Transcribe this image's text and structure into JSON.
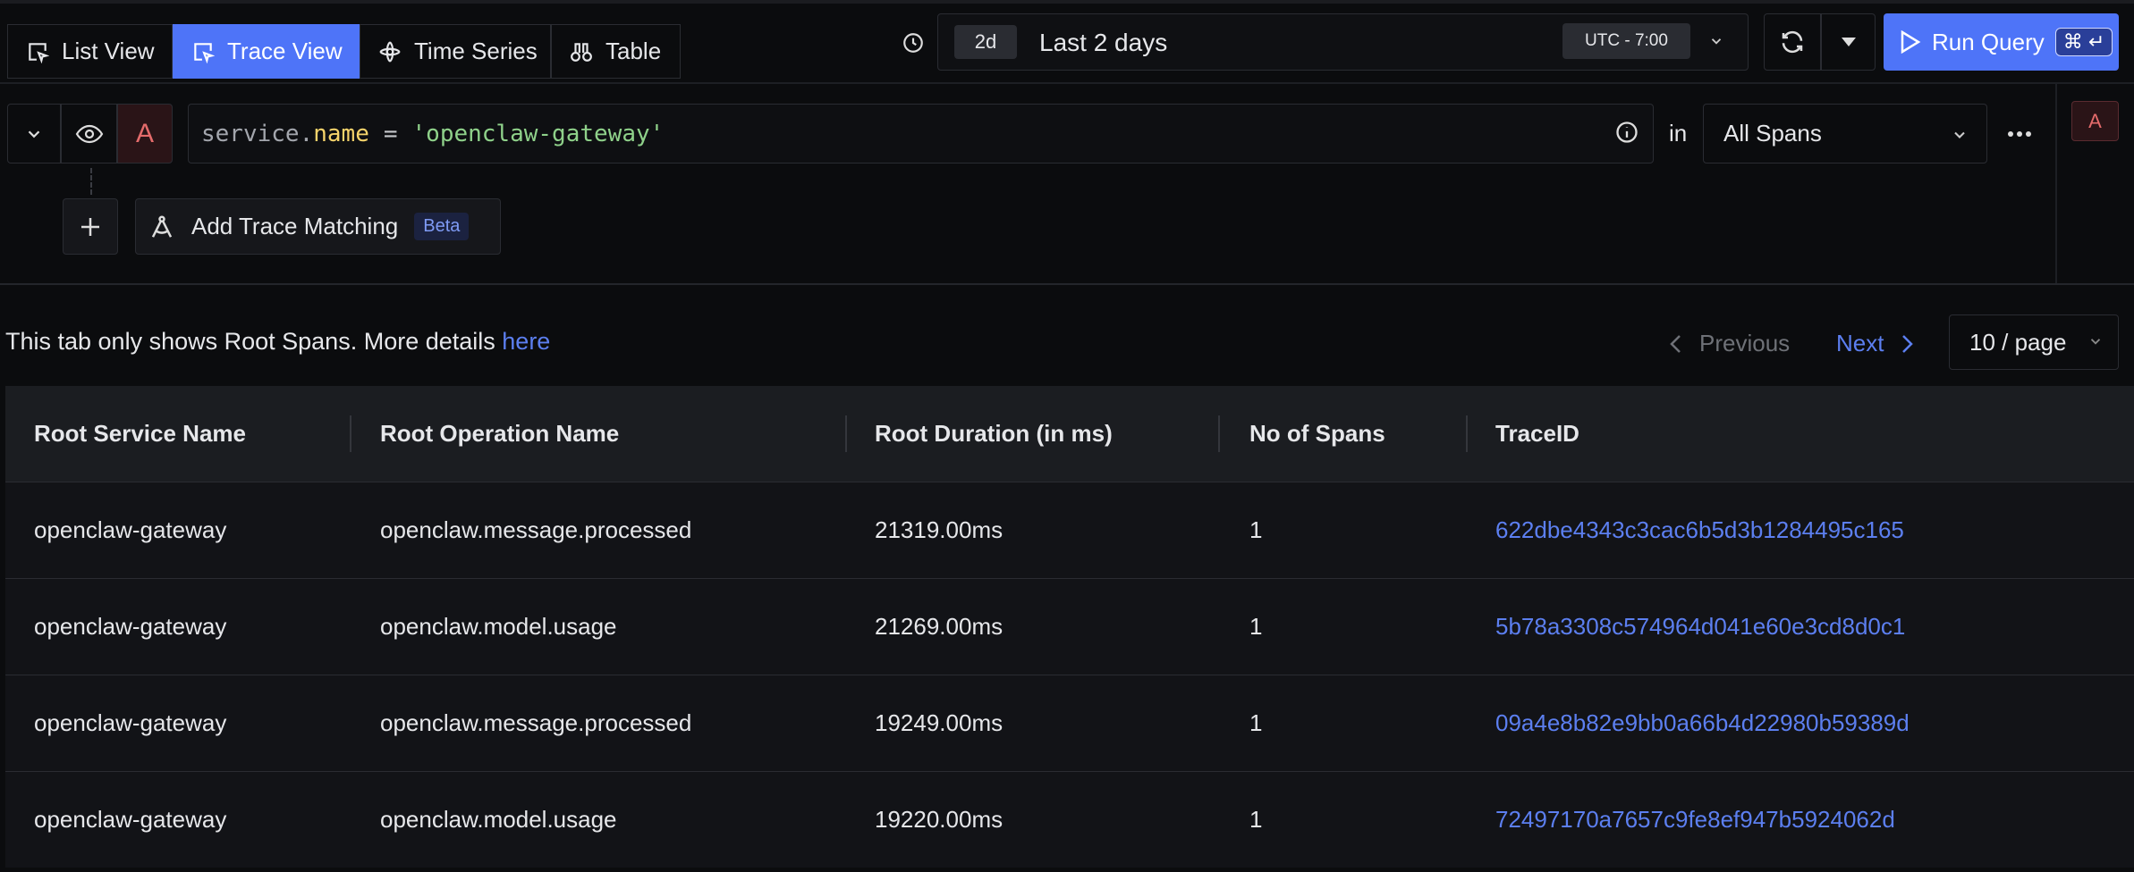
{
  "tabs": [
    "List View",
    "Trace View",
    "Time Series",
    "Table"
  ],
  "active_tab": "Trace View",
  "time_picker": {
    "shortcut": "2d",
    "label": "Last 2 days",
    "timezone": "UTC - 7:00"
  },
  "run_button": {
    "label": "Run Query",
    "shortcut": "⌘ ↵"
  },
  "query": {
    "letter": "A",
    "parts": [
      "service.",
      "name",
      "=",
      "'openclaw-gateway'"
    ],
    "in_label": "in",
    "scope": "All Spans",
    "side_letter": "A"
  },
  "add_trace_matching": {
    "label": "Add Trace Matching",
    "badge": "Beta"
  },
  "notice": {
    "text": "This tab only shows Root Spans. More details",
    "link": "here"
  },
  "pagination": {
    "previous": "Previous",
    "next": "Next",
    "page_size": "10 / page"
  },
  "table": {
    "headers": [
      "Root Service Name",
      "Root Operation Name",
      "Root Duration (in ms)",
      "No of Spans",
      "TraceID"
    ],
    "rows": [
      [
        "openclaw-gateway",
        "openclaw.message.processed",
        "21319.00ms",
        "1",
        "622dbe4343c3cac6b5d3b1284495c165"
      ],
      [
        "openclaw-gateway",
        "openclaw.model.usage",
        "21269.00ms",
        "1",
        "5b78a3308c574964d041e60e3cd8d0c1"
      ],
      [
        "openclaw-gateway",
        "openclaw.message.processed",
        "19249.00ms",
        "1",
        "09a4e8b82e9bb0a66b4d22980b59389d"
      ],
      [
        "openclaw-gateway",
        "openclaw.model.usage",
        "19220.00ms",
        "1",
        "72497170a7657c9fe8ef947b5924062d"
      ]
    ]
  }
}
